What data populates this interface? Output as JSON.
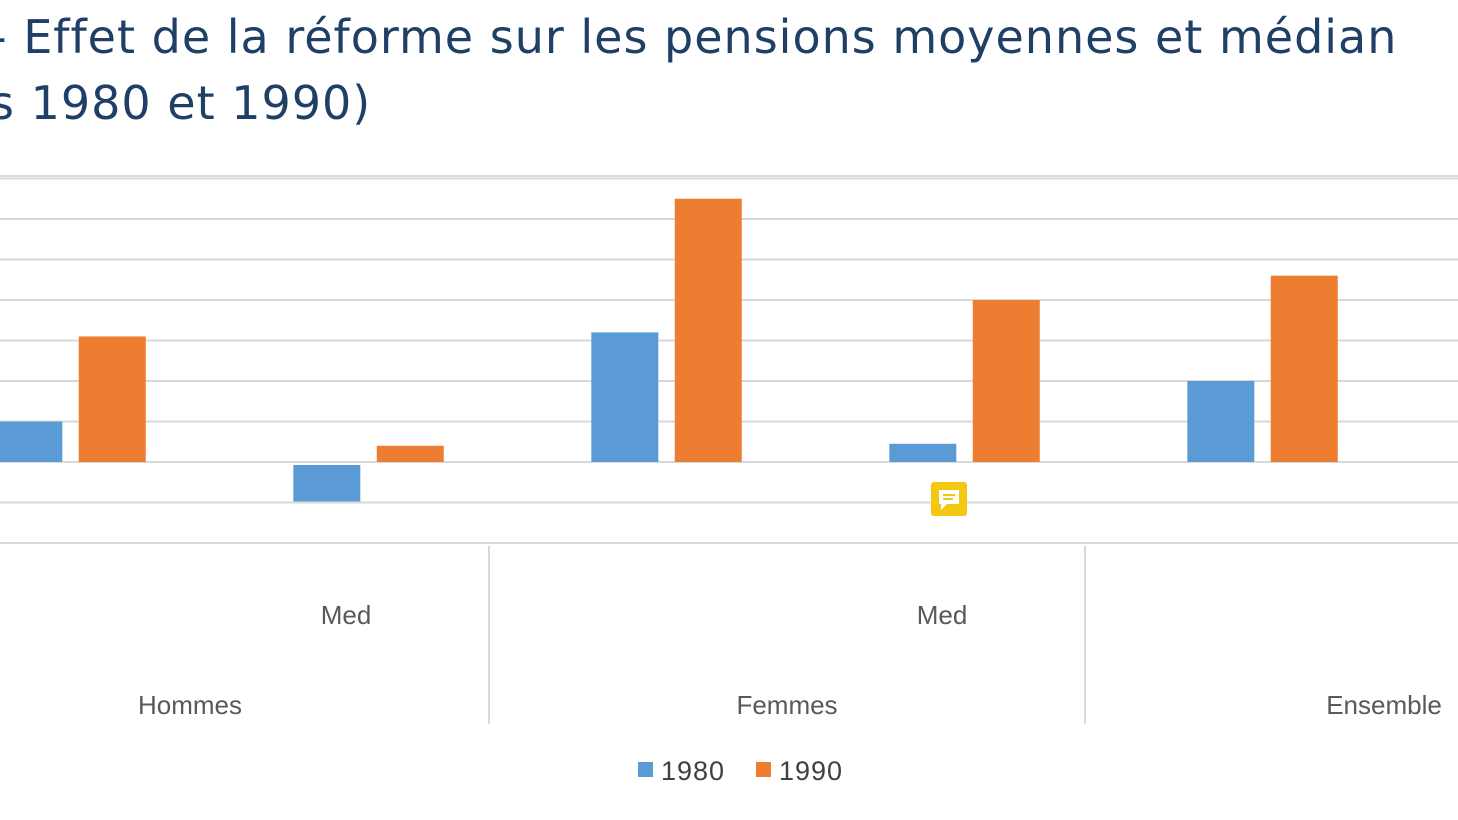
{
  "title_line_1": "- Effet de la réforme sur les pensions moyennes et médian",
  "title_line_2": "s 1980 et 1990)",
  "colors": {
    "s1980": "#5b9bd5",
    "s1990": "#ed7d31",
    "title": "#1f3f66",
    "grid": "#d9d9d9",
    "note": "#f2c811"
  },
  "comment_icon": "comment-icon",
  "chart_data": {
    "type": "bar",
    "grid": true,
    "legend_position": "bottom",
    "inner_labels": [
      "",
      "Med",
      "",
      "Med",
      "",
      ""
    ],
    "groups": [
      "Hommes",
      "Femmes",
      "Ensemble"
    ],
    "series": [
      {
        "name": "1980",
        "values": [
          1.0,
          -0.9,
          3.2,
          0.45,
          2.0,
          null
        ]
      },
      {
        "name": "1990",
        "values": [
          3.1,
          0.4,
          6.5,
          4.0,
          4.6,
          null
        ]
      }
    ]
  }
}
